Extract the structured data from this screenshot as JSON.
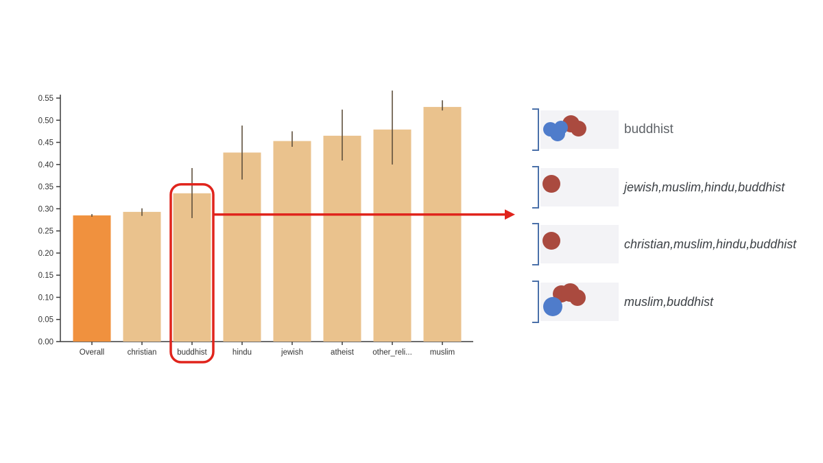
{
  "chart_data": {
    "type": "bar",
    "title": "",
    "xlabel": "",
    "ylabel": "",
    "categories": [
      "Overall",
      "christian",
      "buddhist",
      "hindu",
      "jewish",
      "atheist",
      "other_reli...",
      "muslim"
    ],
    "values": [
      0.285,
      0.293,
      0.335,
      0.427,
      0.453,
      0.465,
      0.479,
      0.53
    ],
    "error_low": [
      0.282,
      0.284,
      0.279,
      0.366,
      0.44,
      0.409,
      0.4,
      0.522
    ],
    "error_high": [
      0.288,
      0.301,
      0.392,
      0.488,
      0.475,
      0.524,
      0.567,
      0.545
    ],
    "ylim": [
      0,
      0.55
    ],
    "ytick_step": 0.05,
    "ytick_labels": [
      "0.00",
      "0.05",
      "0.10",
      "0.15",
      "0.20",
      "0.25",
      "0.30",
      "0.35",
      "0.40",
      "0.45",
      "0.50",
      "0.55"
    ],
    "grid": false,
    "bar_color_default": "#eac28d",
    "bar_color_overall": "#f0913e",
    "error_color": "#5d4f3c",
    "axis_color": "#3a3a3a",
    "highlight": {
      "category": "buddhist",
      "box_color": "#e0241c",
      "arrow_color": "#e0241c",
      "arrow_level": 0.287
    }
  },
  "legend": {
    "dot_colors": {
      "red": "#aa4a3f",
      "blue": "#4f7ccb"
    },
    "bracket_color": "#4a70a9",
    "rows": [
      {
        "label": "buddhist",
        "italic": false,
        "dots": [
          {
            "x": 44,
            "y": 19,
            "r": 12.5,
            "color": "red"
          },
          {
            "x": 55,
            "y": 26,
            "r": 11.5,
            "color": "red"
          },
          {
            "x": 14,
            "y": 27,
            "r": 10.5,
            "color": "blue"
          },
          {
            "x": 25,
            "y": 34,
            "r": 11,
            "color": "blue"
          },
          {
            "x": 30,
            "y": 25,
            "r": 10,
            "color": "blue"
          }
        ]
      },
      {
        "label": "jewish,muslim,hindu,buddhist",
        "italic": true,
        "dots": [
          {
            "x": 16,
            "y": 23,
            "r": 13,
            "color": "red"
          }
        ]
      },
      {
        "label": "christian,muslim,hindu,buddhist",
        "italic": true,
        "dots": [
          {
            "x": 16,
            "y": 23,
            "r": 13,
            "color": "red"
          }
        ]
      },
      {
        "label": "muslim,buddhist",
        "italic": true,
        "dots": [
          {
            "x": 30,
            "y": 16,
            "r": 12.5,
            "color": "red"
          },
          {
            "x": 43,
            "y": 14,
            "r": 13.5,
            "color": "red"
          },
          {
            "x": 54,
            "y": 22,
            "r": 12,
            "color": "red"
          },
          {
            "x": 18,
            "y": 35,
            "r": 14,
            "color": "blue"
          }
        ]
      }
    ]
  }
}
